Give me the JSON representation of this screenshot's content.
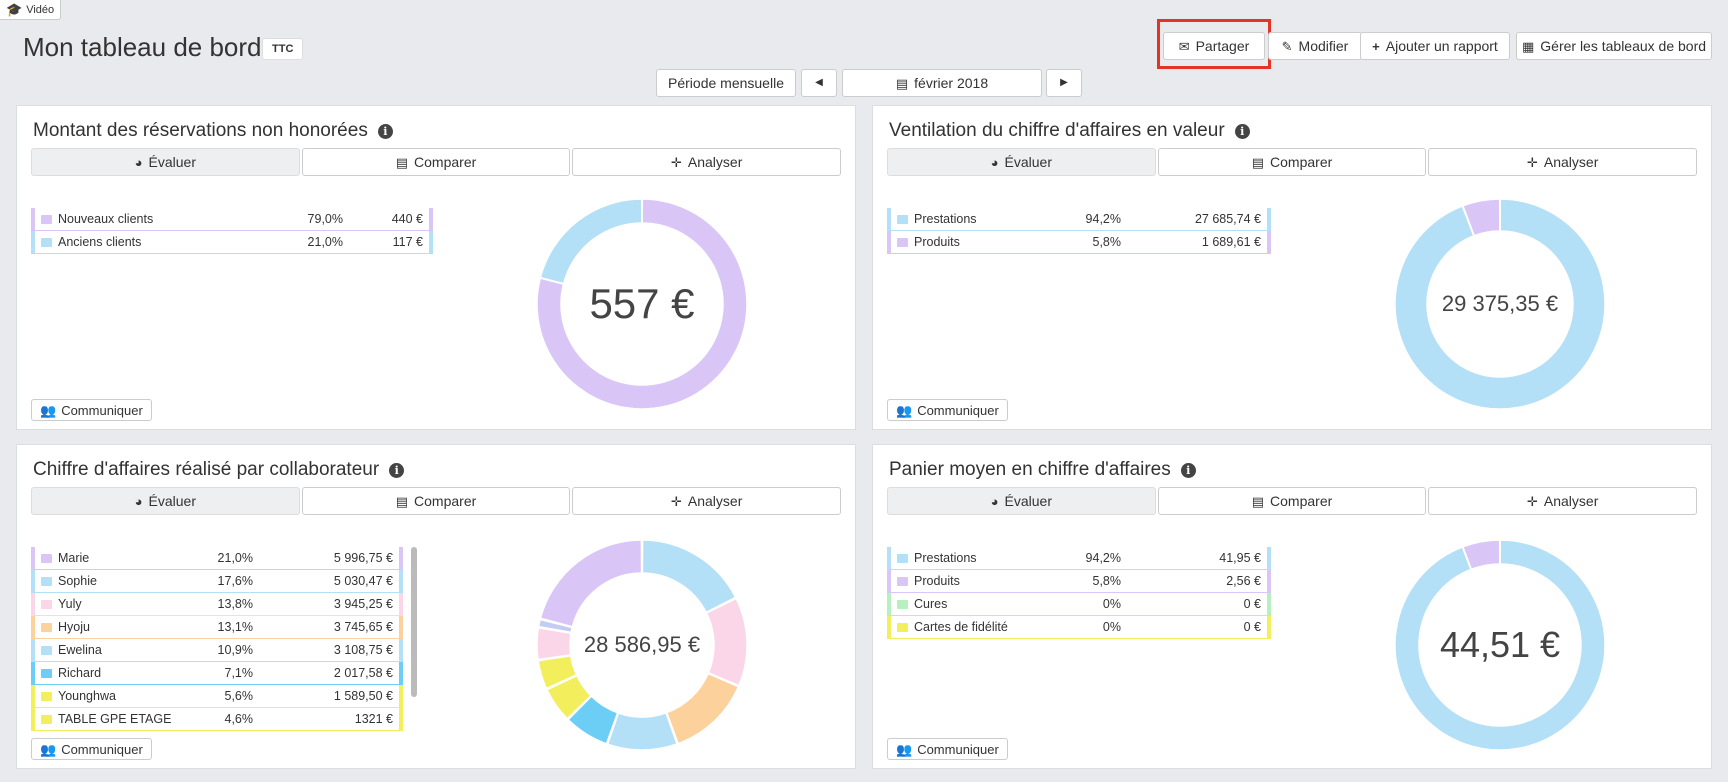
{
  "video_tag": "Vidéo",
  "header": {
    "title": "Mon tableau de bord",
    "badge": "TTC",
    "share": "Partager",
    "edit": "Modifier",
    "add_report": "Ajouter un rapport",
    "manage": "Gérer les tableaux de bord"
  },
  "period": {
    "mode": "Période mensuelle",
    "date": "février 2018"
  },
  "tabs": {
    "evaluate": "Évaluer",
    "compare": "Comparer",
    "analyze": "Analyser"
  },
  "communicate": "Communiquer",
  "panels": [
    {
      "title": "Montant des réservations non honorées",
      "total": "557 €",
      "rows": [
        {
          "name": "Nouveaux clients",
          "pct": "79,0%",
          "value": "440 €",
          "color": "#d9c6f7"
        },
        {
          "name": "Anciens clients",
          "pct": "21,0%",
          "value": "117 €",
          "color": "#b3dff7"
        }
      ],
      "slices": [
        0.79,
        0.21
      ]
    },
    {
      "title": "Ventilation du chiffre d'affaires en valeur",
      "total": "29 375,35 €",
      "rows": [
        {
          "name": "Prestations",
          "pct": "94,2%",
          "value": "27 685,74 €",
          "color": "#b3dff7"
        },
        {
          "name": "Produits",
          "pct": "5,8%",
          "value": "1 689,61 €",
          "color": "#d9c6f7"
        }
      ],
      "slices": [
        0.942,
        0.058
      ]
    },
    {
      "title": "Chiffre d'affaires réalisé par collaborateur",
      "total": "28 586,95 €",
      "rows": [
        {
          "name": "Marie",
          "pct": "21,0%",
          "value": "5 996,75 €",
          "color": "#d9c6f7"
        },
        {
          "name": "Sophie",
          "pct": "17,6%",
          "value": "5 030,47 €",
          "color": "#b3dff7"
        },
        {
          "name": "Yuly",
          "pct": "13,8%",
          "value": "3 945,25 €",
          "color": "#fbd5e8"
        },
        {
          "name": "Hyoju",
          "pct": "13,1%",
          "value": "3 745,65 €",
          "color": "#fdd19c"
        },
        {
          "name": "Ewelina",
          "pct": "10,9%",
          "value": "3 108,75 €",
          "color": "#b3dff7"
        },
        {
          "name": "Richard",
          "pct": "7,1%",
          "value": "2 017,58 €",
          "color": "#6ccdf5"
        },
        {
          "name": "Younghwa",
          "pct": "5,6%",
          "value": "1 589,50 €",
          "color": "#f3ee5c"
        },
        {
          "name": "TABLE GPE ETAGE",
          "pct": "4,6%",
          "value": "1321 €",
          "color": "#f3ee5c"
        }
      ],
      "slices": [
        0.176,
        0.138,
        0.131,
        0.109,
        0.071,
        0.056,
        0.046,
        0.05,
        0.013,
        0.21
      ],
      "slice_colors": [
        "#b3dff7",
        "#fbd5e8",
        "#fdd19c",
        "#b3dff7",
        "#6ccdf5",
        "#f3ee5c",
        "#f3ee5c",
        "#fbd5e8",
        "#c3ccf2",
        "#d9c6f7"
      ]
    },
    {
      "title": "Panier moyen en chiffre d'affaires",
      "total": "44,51 €",
      "rows": [
        {
          "name": "Prestations",
          "pct": "94,2%",
          "value": "41,95 €",
          "color": "#b3dff7"
        },
        {
          "name": "Produits",
          "pct": "5,8%",
          "value": "2,56 €",
          "color": "#d9c6f7"
        },
        {
          "name": "Cures",
          "pct": "0%",
          "value": "0 €",
          "color": "#b6f0c0"
        },
        {
          "name": "Cartes de fidélité",
          "pct": "0%",
          "value": "0 €",
          "color": "#f3ee5c"
        }
      ],
      "slices": [
        0.942,
        0.058
      ]
    }
  ]
}
